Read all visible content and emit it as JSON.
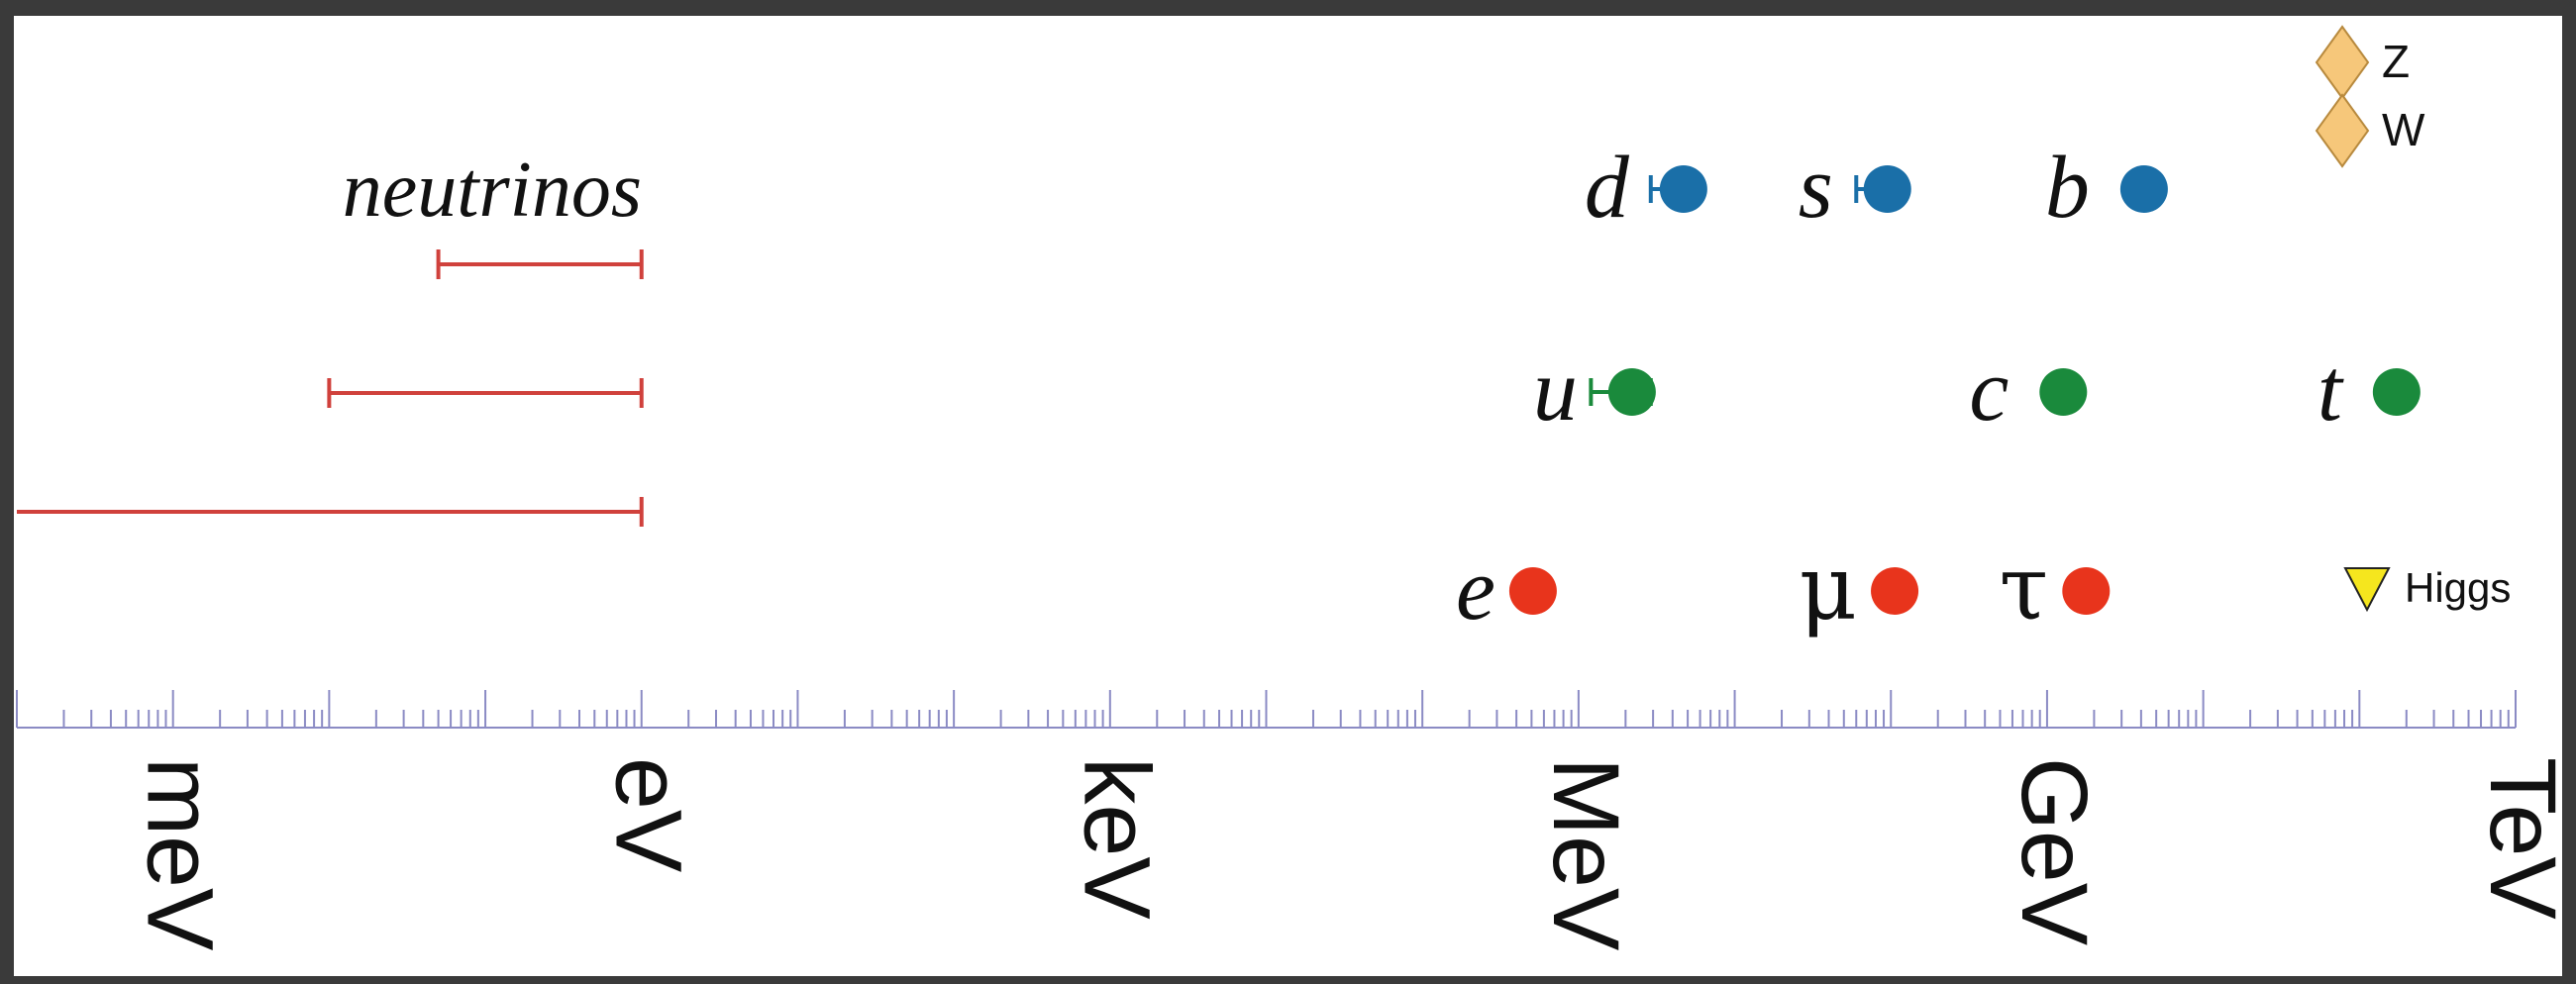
{
  "chart_data": {
    "type": "scatter",
    "title": "",
    "xlabel": "",
    "ylabel": "",
    "x_scale": "log",
    "x_unit_ticks": [
      "meV",
      "eV",
      "keV",
      "MeV",
      "GeV",
      "TeV"
    ],
    "x_range_eV": [
      0.0001,
      1000000000000
    ],
    "grid": false,
    "neutrinos": {
      "label": "neutrinos",
      "color": "#d0413c",
      "ranges_eV": [
        {
          "min": 0.05,
          "max": 1
        },
        {
          "min": 0.01,
          "max": 1
        },
        {
          "min": 0.0001,
          "max": 1,
          "open_lower": true
        }
      ]
    },
    "quarks_down": {
      "color": "#1a6fa8",
      "points": [
        {
          "label": "d",
          "mass_eV": 4700000,
          "error_low_eV": 2900000,
          "error_high_eV": 5800000
        },
        {
          "label": "s",
          "mass_eV": 95000000,
          "error_low_eV": 60000000,
          "error_high_eV": 110000000
        },
        {
          "label": "b",
          "mass_eV": 4180000000
        }
      ]
    },
    "quarks_up": {
      "color": "#1a8a3c",
      "points": [
        {
          "label": "u",
          "mass_eV": 2200000,
          "error_low_eV": 1200000,
          "error_high_eV": 2900000
        },
        {
          "label": "c",
          "mass_eV": 1270000000
        },
        {
          "label": "t",
          "mass_eV": 173000000000
        }
      ]
    },
    "leptons": {
      "color": "#e8341c",
      "points": [
        {
          "label": "e",
          "mass_eV": 511000
        },
        {
          "label": "μ",
          "mass_eV": 105700000
        },
        {
          "label": "τ",
          "mass_eV": 1777000000
        }
      ]
    },
    "bosons": {
      "color": "#f6c77a",
      "points": [
        {
          "label": "Z",
          "mass_eV": 91200000000
        },
        {
          "label": "W",
          "mass_eV": 80400000000
        }
      ]
    },
    "higgs": {
      "label": "Higgs",
      "mass_eV": 125000000000,
      "color": "#f5e61e"
    },
    "axis_color": "#8b8bc4"
  }
}
